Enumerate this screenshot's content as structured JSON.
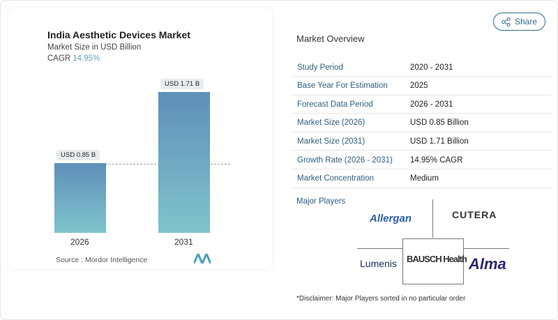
{
  "header": {
    "share_label": "Share"
  },
  "chart_card": {
    "title": "India Aesthetic Devices Market",
    "subtitle": "Market Size in USD Billion",
    "cagr_label": "CAGR",
    "cagr_value": "14.95%",
    "source": "Source :  Mordor Intelligence"
  },
  "chart_data": {
    "type": "bar",
    "categories": [
      "2026",
      "2031"
    ],
    "values": [
      0.85,
      1.71
    ],
    "data_labels": [
      "USD 0.85 B",
      "USD 1.71 B"
    ],
    "title": "India Aesthetic Devices Market",
    "ylabel": "Market Size in USD Billion",
    "colors": [
      "#5f8fb8",
      "#7fc4cc"
    ]
  },
  "overview": {
    "title": "Market Overview",
    "rows": [
      {
        "label": "Study Period",
        "value": "2020 - 2031"
      },
      {
        "label": "Base Year For Estimation",
        "value": "2025"
      },
      {
        "label": "Forecast Data Period",
        "value": "2026 - 2031"
      },
      {
        "label": "Market Size (2026)",
        "value": "USD 0.85 Billion"
      },
      {
        "label": "Market Size (2031)",
        "value": "USD 1.71 Billion"
      },
      {
        "label": "Growth Rate (2026 - 2031)",
        "value": "14.95% CAGR"
      },
      {
        "label": "Market Concentration",
        "value": "Medium"
      }
    ],
    "major_players_label": "Major Players",
    "players": [
      "Allergan",
      "CUTERA",
      "Lumenis",
      "BAUSCH Health",
      "Alma"
    ],
    "disclaimer": "*Disclaimer: Major Players sorted in no particular order"
  }
}
